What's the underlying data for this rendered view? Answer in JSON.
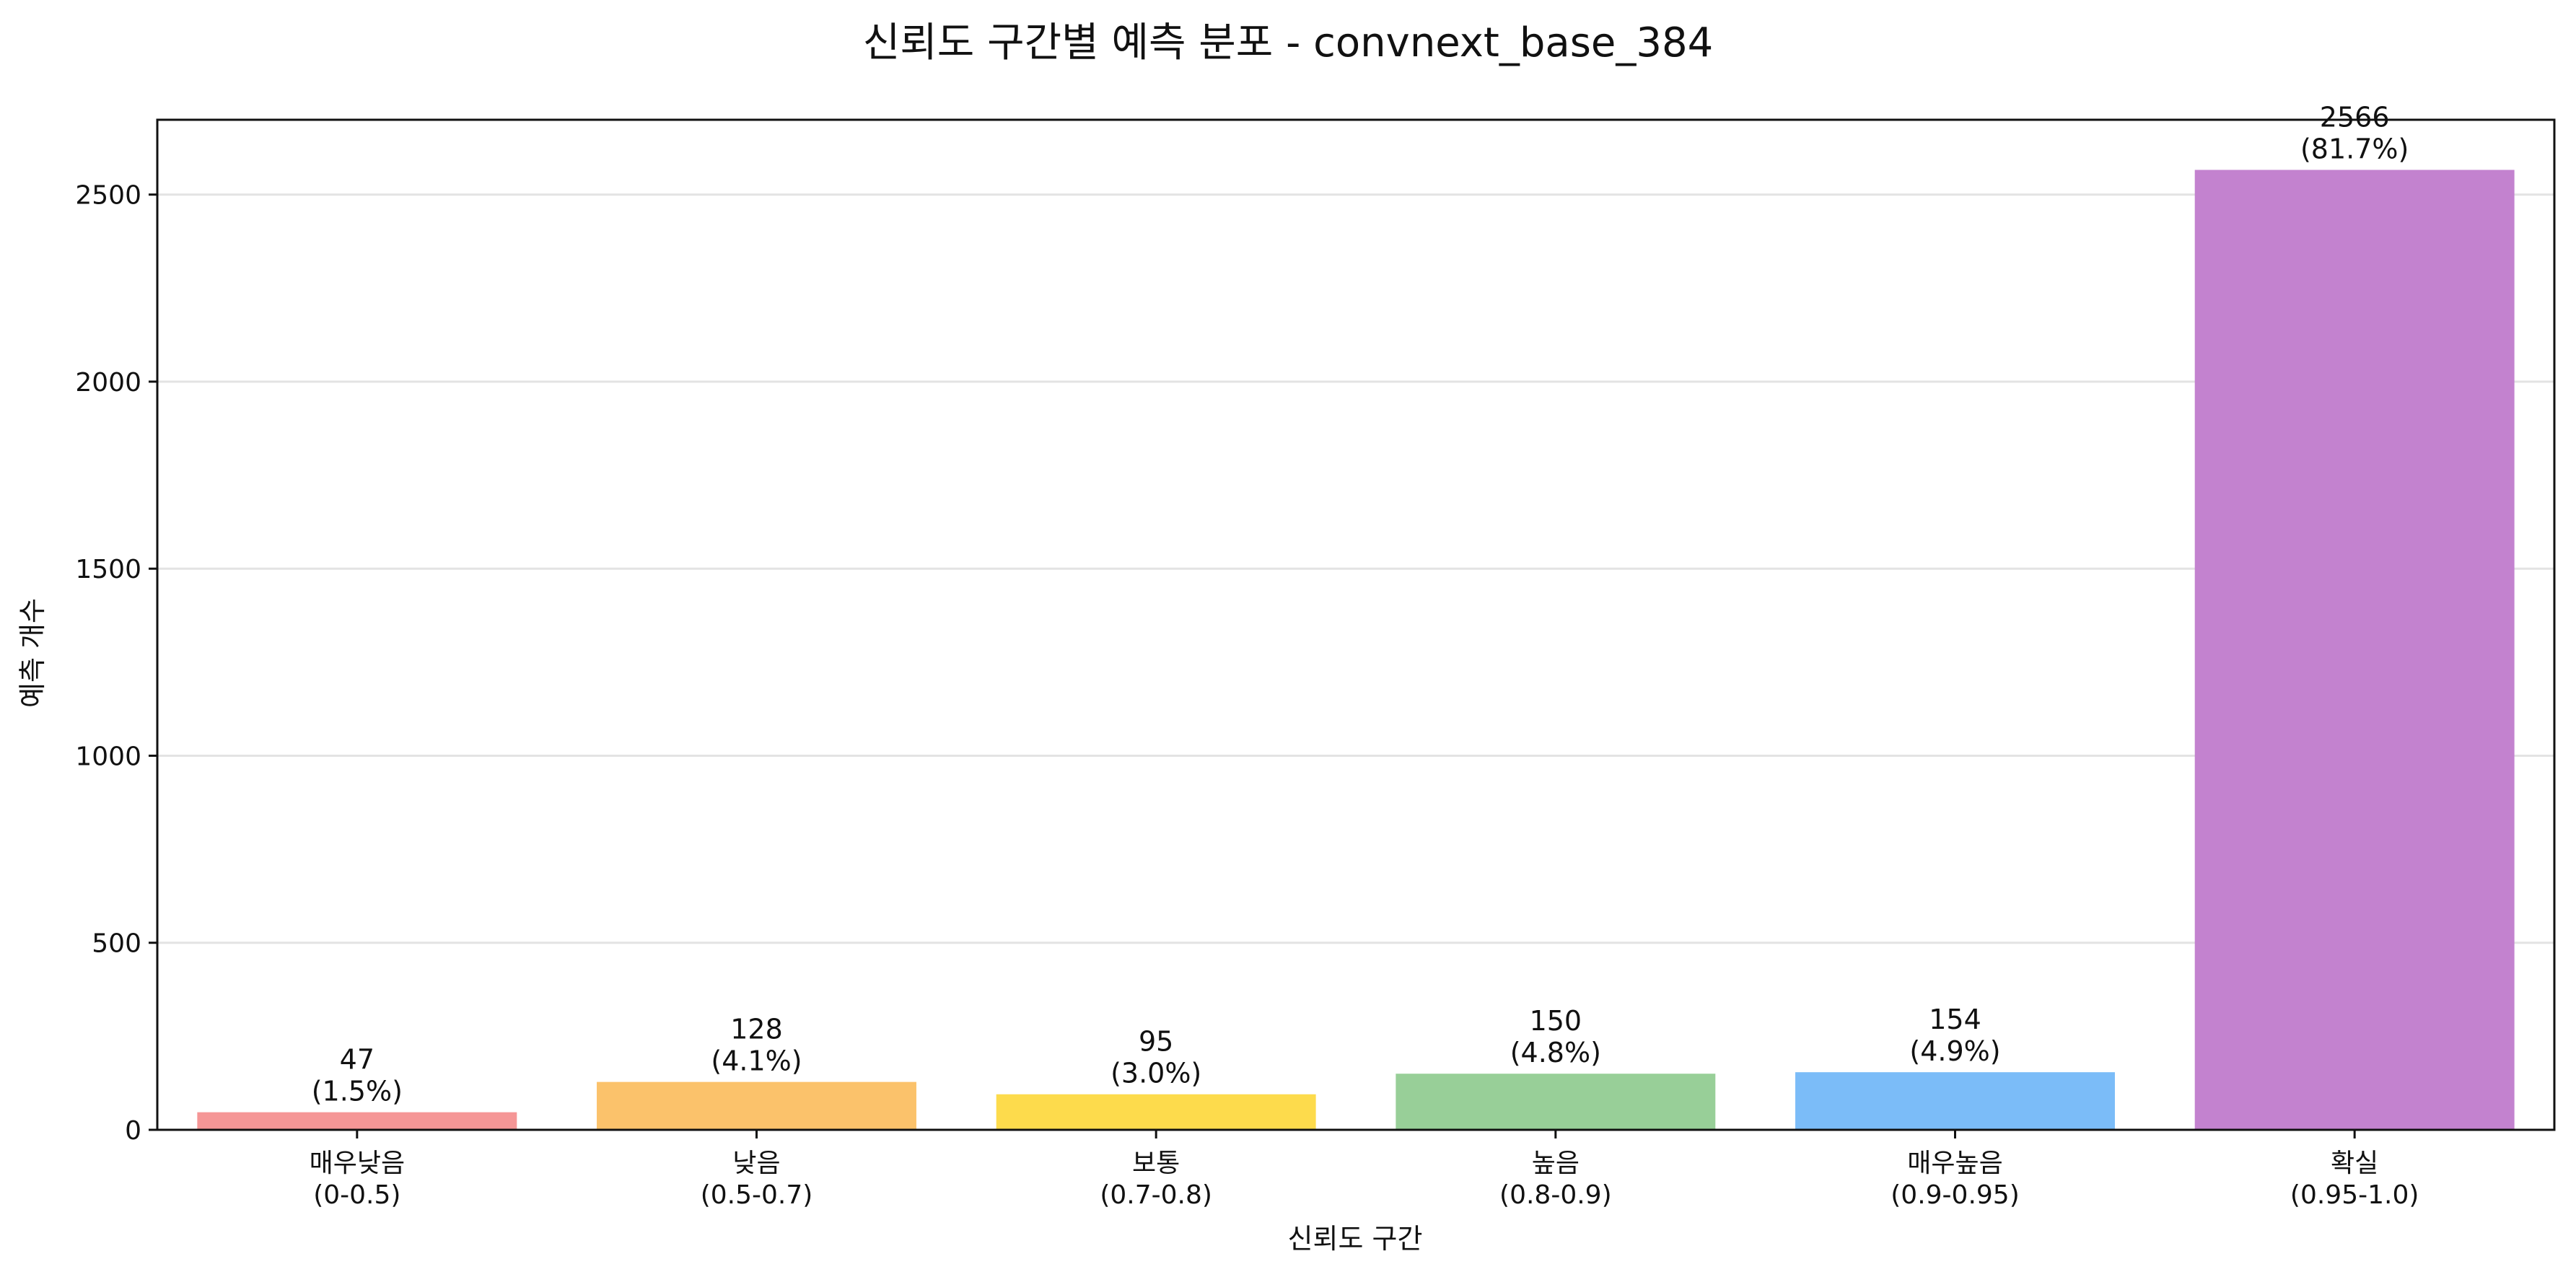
{
  "chart_data": {
    "type": "bar",
    "title": "신뢰도 구간별 예측 분포 - convnext_base_384",
    "xlabel": "신뢰도 구간",
    "ylabel": "예측 개수",
    "categories": [
      [
        "매우낮음",
        "(0-0.5)"
      ],
      [
        "낮음",
        "(0.5-0.7)"
      ],
      [
        "보통",
        "(0.7-0.8)"
      ],
      [
        "높음",
        "(0.8-0.9)"
      ],
      [
        "매우높음",
        "(0.9-0.95)"
      ],
      [
        "확실",
        "(0.95-1.0)"
      ]
    ],
    "values": [
      47,
      128,
      95,
      150,
      154,
      2566
    ],
    "percent_labels": [
      "(1.5%)",
      "(4.1%)",
      "(3.0%)",
      "(4.8%)",
      "(4.9%)",
      "(81.7%)"
    ],
    "colors": [
      "#f59696",
      "#fbc26b",
      "#fddb4c",
      "#98cf98",
      "#7bbcf8",
      "#c382cf"
    ],
    "ylim": [
      0,
      2700
    ],
    "yticks": [
      0,
      500,
      1000,
      1500,
      2000,
      2500
    ],
    "grid": "horizontal",
    "legend": "none"
  }
}
